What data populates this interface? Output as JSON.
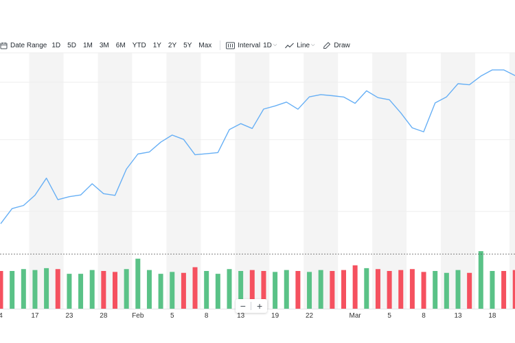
{
  "toolbar": {
    "date_range_label": "Date Range",
    "ranges": [
      "1D",
      "5D",
      "1M",
      "3M",
      "6M",
      "YTD",
      "1Y",
      "2Y",
      "5Y",
      "Max"
    ],
    "interval_label": "Interval",
    "interval_value": "1D",
    "line_label": "Line",
    "draw_label": "Draw",
    "icons": [
      "calendar-icon",
      "candlestick-icon",
      "line-chart-icon",
      "pencil-icon"
    ]
  },
  "zoom": {
    "out_label": "−",
    "in_label": "+"
  },
  "colors": {
    "line": "#66aff5",
    "volume_up": "#5ac287",
    "volume_down": "#f5515f",
    "week_shade": "#f4f4f4",
    "grid": "#eeeeee",
    "axis_text": "#333333"
  },
  "chart_data": {
    "type": "line",
    "title": "",
    "x_tick_labels": [
      "4",
      "17",
      "23",
      "28",
      "Feb",
      "5",
      "8",
      "13",
      "19",
      "22",
      "Mar",
      "5",
      "8",
      "13",
      "18"
    ],
    "x_tick_index": [
      0,
      3,
      6,
      9,
      12,
      15,
      18,
      21,
      24,
      27,
      31,
      34,
      37,
      40,
      43
    ],
    "series": [
      {
        "type": "line",
        "values": [
          31.5,
          42.0,
          44.2,
          51.3,
          63.2,
          48.2,
          50.3,
          51.5,
          59.3,
          52.4,
          51.2,
          69.5,
          80.0,
          81.4,
          88.3,
          93.2,
          90.2,
          79.5,
          80.2,
          81.0,
          97.0,
          101.2,
          97.8,
          111.3,
          113.5,
          116.2,
          111.2,
          119.8,
          121.4,
          120.6,
          119.7,
          115.3,
          124.0,
          119.3,
          117.8,
          108.6,
          98.2,
          95.5,
          115.6,
          119.8,
          129.0,
          128.2,
          134.3,
          138.6,
          138.6,
          134.6
        ]
      },
      {
        "type": "bar",
        "name": "Volume",
        "values": [
          40,
          40,
          42,
          41,
          43,
          42,
          37,
          37,
          41,
          40,
          39,
          42,
          53,
          41,
          37,
          39,
          38,
          44,
          40,
          37,
          42,
          40,
          41,
          40,
          39,
          41,
          40,
          39,
          41,
          40,
          41,
          46,
          43,
          42,
          40,
          41,
          42,
          39,
          40,
          38,
          41,
          38,
          61,
          40,
          40,
          41
        ],
        "direction": [
          "down",
          "up",
          "up",
          "up",
          "up",
          "down",
          "up",
          "up",
          "up",
          "down",
          "down",
          "up",
          "up",
          "up",
          "up",
          "up",
          "down",
          "down",
          "up",
          "up",
          "up",
          "up",
          "down",
          "down",
          "up",
          "up",
          "down",
          "up",
          "up",
          "down",
          "down",
          "down",
          "up",
          "down",
          "down",
          "down",
          "down",
          "down",
          "up",
          "up",
          "up",
          "down",
          "up",
          "up",
          "down",
          "down"
        ]
      }
    ],
    "grid": true,
    "price_grid_values": [
      40,
      90,
      130
    ],
    "ylim": [
      0,
      150
    ],
    "volume_ylim": [
      0,
      80
    ],
    "volume_reference": 58
  }
}
